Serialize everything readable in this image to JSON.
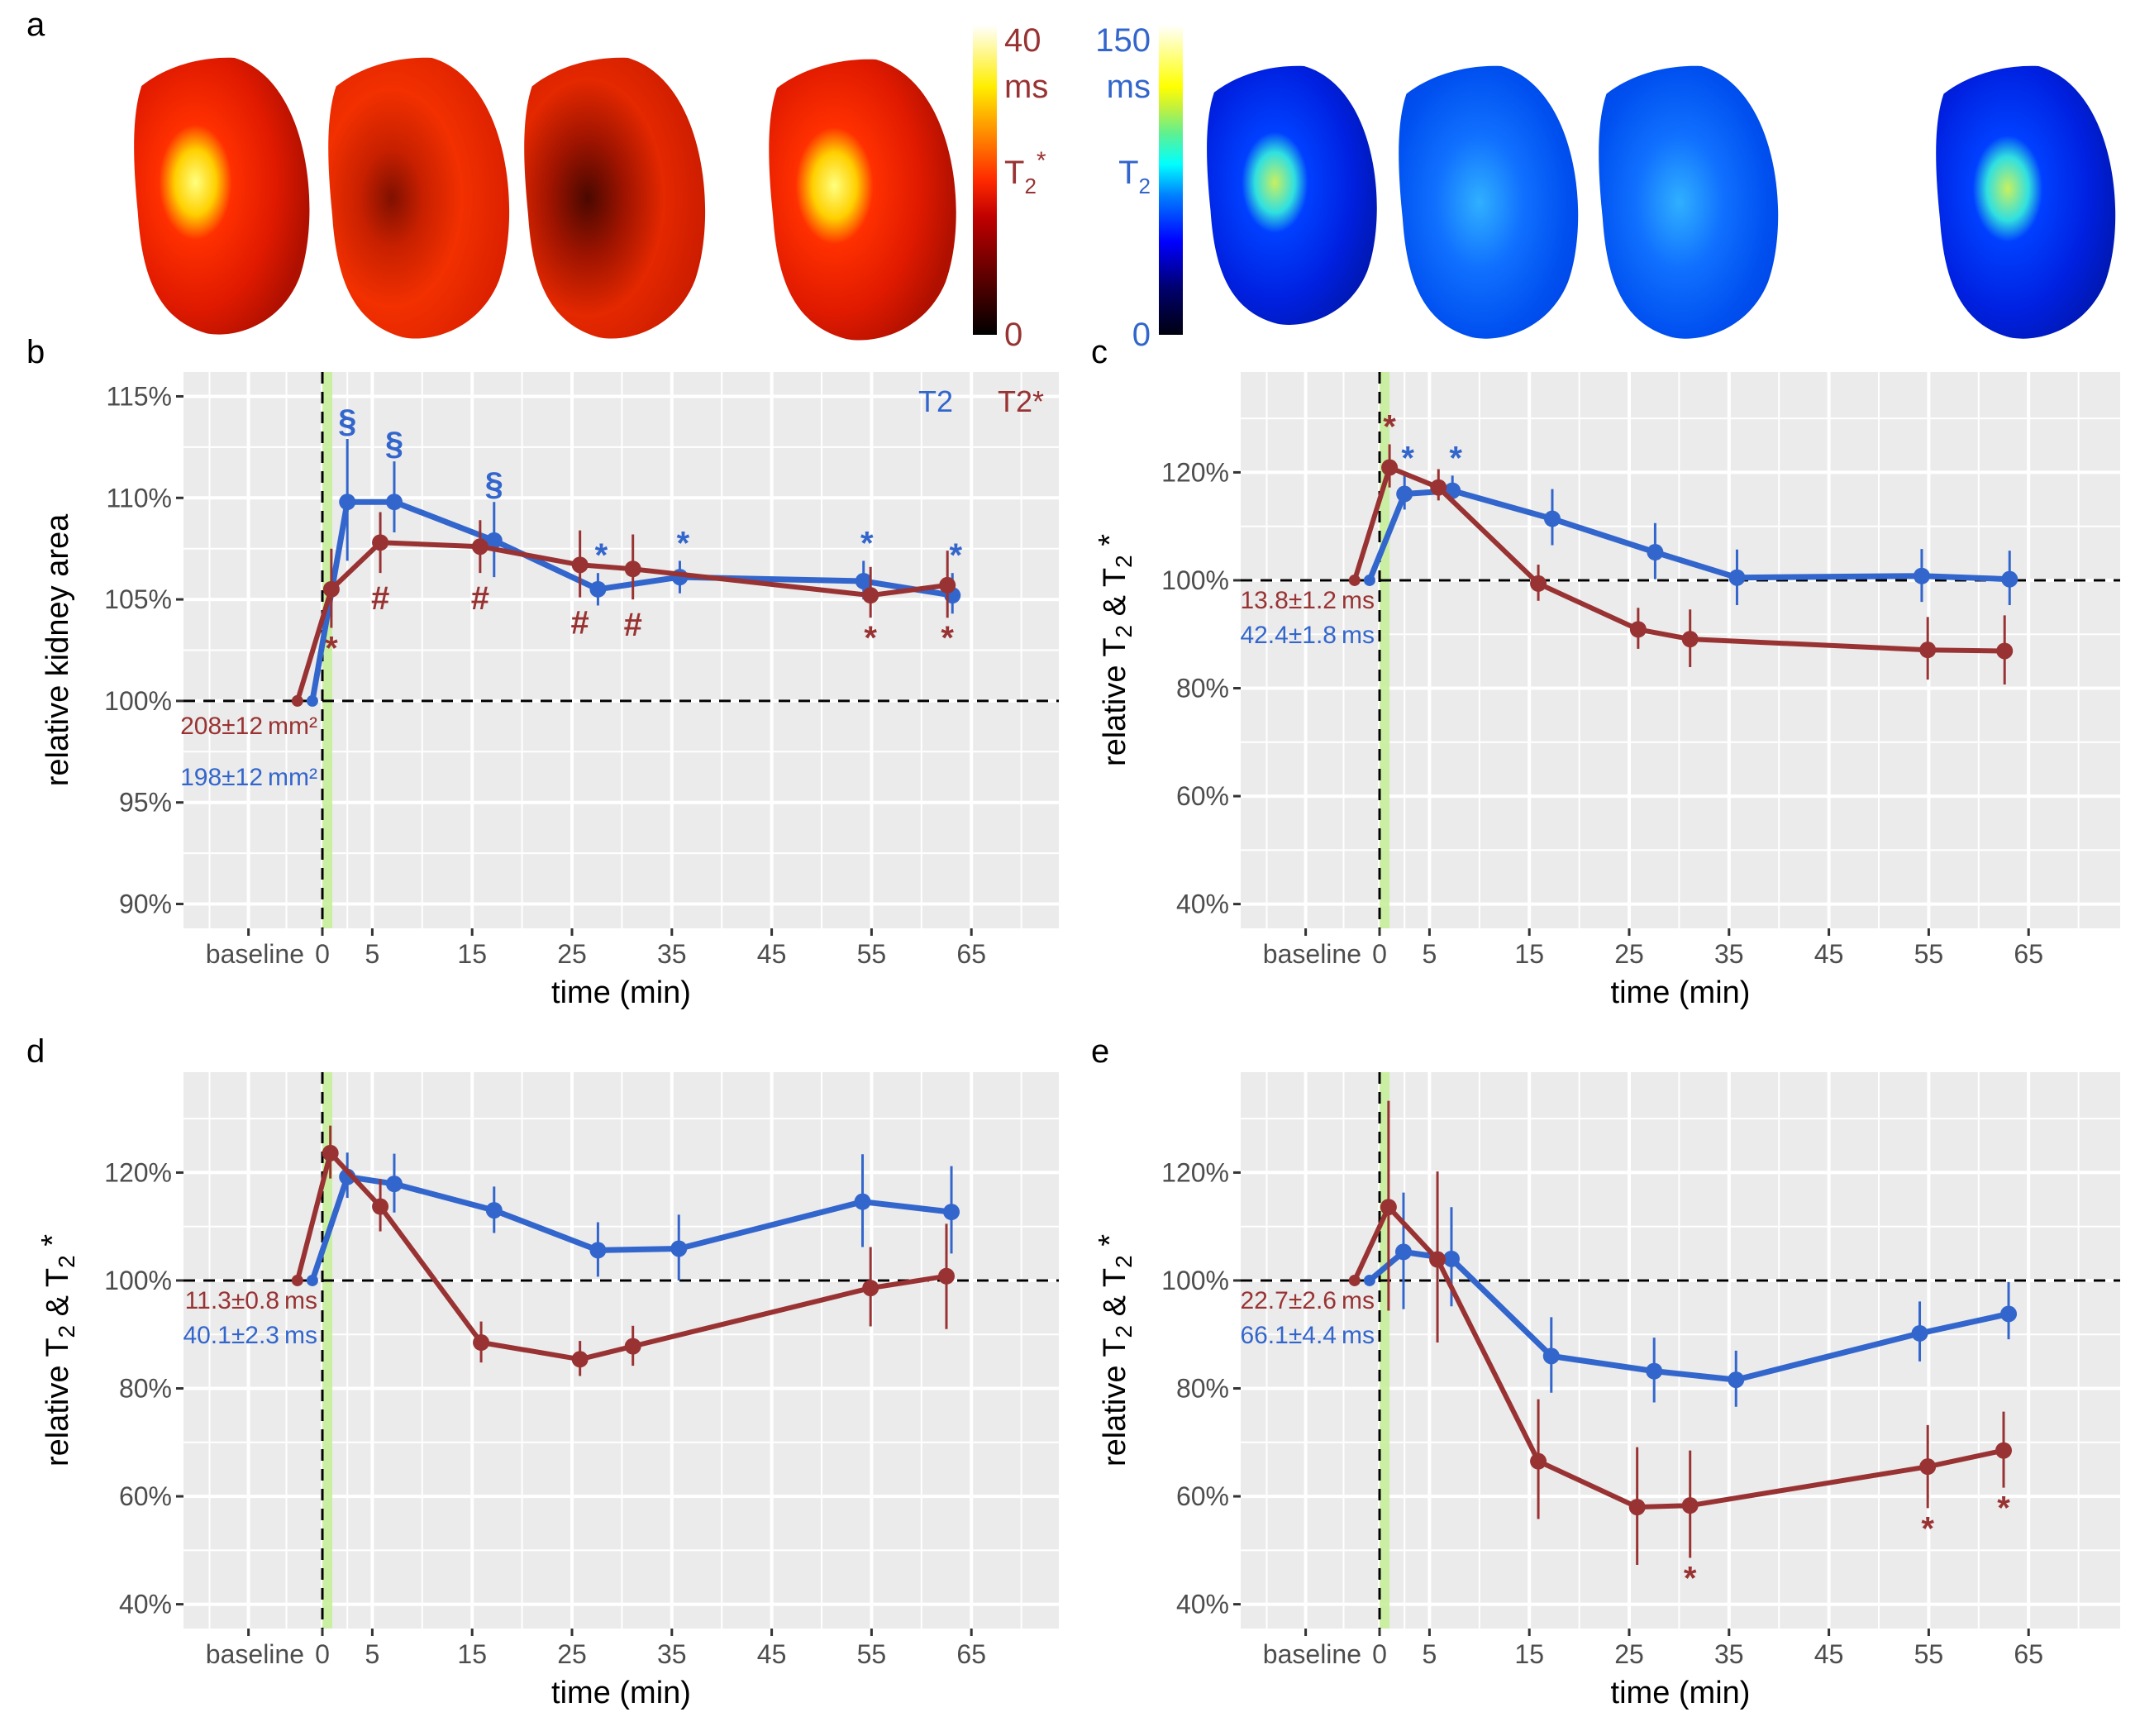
{
  "figure": {
    "panel_letters": [
      "a",
      "b",
      "c",
      "d",
      "e"
    ]
  },
  "colors": {
    "t2": "#3366CC",
    "t2star": "#993333",
    "panel_bg": "#EBEBEB",
    "grid": "#FFFFFF",
    "infusion_band": "#C8F09A",
    "tick_text": "#4D4D4D"
  },
  "panel_a": {
    "t2star_colorbar": {
      "max_label": "40",
      "unit_label": "ms",
      "name_main": "T",
      "name_sub": "2",
      "name_sup": "*",
      "min_label": "0",
      "colormap": "hot"
    },
    "t2_colorbar": {
      "max_label": "150",
      "unit_label": "ms",
      "name_main": "T",
      "name_sub": "2",
      "min_label": "0",
      "colormap": "jet"
    },
    "t2star_maps": [
      "baseline",
      "post-1",
      "post-2",
      "post-3"
    ],
    "t2_maps": [
      "baseline",
      "post-1",
      "post-2",
      "post-3"
    ]
  },
  "chart_data": [
    {
      "panel": "b",
      "type": "line",
      "xlabel": "time (min)",
      "ylabel": "relative kidney area",
      "x_tick_labels": [
        "baseline",
        "0",
        "5",
        "15",
        "25",
        "35",
        "45",
        "55",
        "65"
      ],
      "x_ticks": [
        -7.4,
        0,
        5,
        15,
        25,
        35,
        45,
        55,
        65
      ],
      "y_ticks": [
        90,
        95,
        100,
        105,
        110,
        115
      ],
      "y_tick_labels": [
        "90%",
        "95%",
        "100%",
        "105%",
        "110%",
        "115%"
      ],
      "y_minor": [
        92.5,
        97.5,
        102.5,
        107.5,
        112.5
      ],
      "ylim": [
        88.8,
        116.2
      ],
      "xlim": [
        -13.9,
        73.7
      ],
      "reference_line_y": 100,
      "infusion_band": [
        0,
        1
      ],
      "legend": [
        {
          "label": "T2",
          "series": "T2"
        },
        {
          "label": "T2*",
          "series": "T2*"
        }
      ],
      "legend_position": "top-right",
      "baseline_annotations": [
        {
          "series": "T2*",
          "text": "208±12 mm²"
        },
        {
          "series": "T2",
          "text": "198±12 mm²"
        }
      ],
      "series": [
        {
          "name": "T2",
          "x": [
            -1,
            2.5,
            7.2,
            17.2,
            27.6,
            35.8,
            54.2,
            63.1
          ],
          "y": [
            100,
            109.8,
            109.8,
            107.9,
            105.5,
            106.1,
            105.9,
            105.2
          ],
          "err_low": [
            100,
            106.9,
            108.3,
            106.1,
            104.7,
            105.3,
            105.0,
            104.3
          ],
          "err_high": [
            100,
            112.9,
            111.8,
            109.8,
            106.3,
            106.9,
            106.9,
            106.3
          ],
          "markers": [
            "",
            "§",
            "§",
            "§",
            "*",
            "*",
            "*",
            "*"
          ],
          "marker_pos": [
            "",
            "above",
            "above",
            "above",
            "above",
            "above",
            "above",
            "above"
          ]
        },
        {
          "name": "T2*",
          "x": [
            -2.5,
            0.9,
            5.8,
            15.8,
            25.8,
            31.1,
            54.9,
            62.6
          ],
          "y": [
            100,
            105.5,
            107.8,
            107.6,
            106.7,
            106.5,
            105.2,
            105.7
          ],
          "err_low": [
            100,
            103.6,
            106.3,
            106.3,
            105.1,
            105.0,
            104.1,
            104.1
          ],
          "err_high": [
            100,
            107.5,
            109.3,
            108.9,
            108.4,
            108.2,
            106.6,
            107.4
          ],
          "markers": [
            "",
            "*",
            "#",
            "#",
            "#",
            "#",
            "*",
            "*"
          ],
          "marker_pos": [
            "",
            "below",
            "below",
            "below",
            "below",
            "below",
            "below",
            "below"
          ]
        }
      ]
    },
    {
      "panel": "c",
      "type": "line",
      "xlabel": "time (min)",
      "ylabel_main": "relative T",
      "ylabel_parts": [
        "relative T",
        "2",
        " & T",
        "2",
        " *"
      ],
      "x_tick_labels": [
        "baseline",
        "0",
        "5",
        "15",
        "25",
        "35",
        "45",
        "55",
        "65"
      ],
      "x_ticks": [
        -7.4,
        0,
        5,
        15,
        25,
        35,
        45,
        55,
        65
      ],
      "y_ticks": [
        40,
        60,
        80,
        100,
        120
      ],
      "y_tick_labels": [
        "40%",
        "60%",
        "80%",
        "100%",
        "120%"
      ],
      "y_minor": [
        50,
        70,
        90,
        110,
        130
      ],
      "ylim": [
        35.5,
        138.6
      ],
      "xlim": [
        -13.9,
        73.7
      ],
      "reference_line_y": 100,
      "infusion_band": [
        0,
        1
      ],
      "baseline_annotations": [
        {
          "series": "T2*",
          "text": "13.8±1.2 ms"
        },
        {
          "series": "T2",
          "text": "42.4±1.8 ms"
        }
      ],
      "series": [
        {
          "name": "T2",
          "x": [
            -1,
            2.5,
            7.3,
            17.3,
            27.6,
            35.8,
            54.3,
            63.1
          ],
          "y": [
            100,
            116.0,
            116.6,
            111.4,
            105.2,
            100.5,
            100.8,
            100.2
          ],
          "err_low": [
            100,
            113.1,
            114.2,
            106.5,
            100.2,
            95.4,
            96.0,
            95.4
          ],
          "err_high": [
            100,
            119.4,
            119.4,
            116.9,
            110.6,
            105.7,
            105.8,
            105.5
          ],
          "markers": [
            "",
            "*",
            "*",
            "",
            "",
            "",
            "",
            ""
          ],
          "marker_pos": [
            "",
            "above",
            "above",
            "",
            "",
            "",
            "",
            ""
          ]
        },
        {
          "name": "T2*",
          "x": [
            -2.5,
            1.0,
            5.9,
            15.9,
            25.9,
            31.1,
            54.9,
            62.6
          ],
          "y": [
            100,
            120.9,
            117.2,
            99.4,
            90.9,
            89.1,
            87.1,
            86.9
          ],
          "err_low": [
            100,
            117.2,
            114.8,
            96.2,
            87.3,
            83.9,
            81.6,
            80.7
          ],
          "err_high": [
            100,
            125.2,
            120.6,
            102.9,
            94.9,
            94.6,
            93.2,
            93.5
          ],
          "markers": [
            "",
            "*",
            "",
            "",
            "",
            "",
            "",
            ""
          ],
          "marker_pos": [
            "",
            "above",
            "",
            "",
            "",
            "",
            "",
            ""
          ]
        }
      ]
    },
    {
      "panel": "d",
      "type": "line",
      "xlabel": "time (min)",
      "ylabel_parts": [
        "relative T",
        "2",
        " & T",
        "2",
        " *"
      ],
      "x_tick_labels": [
        "baseline",
        "0",
        "5",
        "15",
        "25",
        "35",
        "45",
        "55",
        "65"
      ],
      "x_ticks": [
        -7.4,
        0,
        5,
        15,
        25,
        35,
        45,
        55,
        65
      ],
      "y_ticks": [
        40,
        60,
        80,
        100,
        120
      ],
      "y_tick_labels": [
        "40%",
        "60%",
        "80%",
        "100%",
        "120%"
      ],
      "y_minor": [
        50,
        70,
        90,
        110,
        130
      ],
      "ylim": [
        35.5,
        138.6
      ],
      "xlim": [
        -13.9,
        73.7
      ],
      "reference_line_y": 100,
      "infusion_band": [
        0,
        1
      ],
      "baseline_annotations": [
        {
          "series": "T2*",
          "text": "11.3±0.8 ms"
        },
        {
          "series": "T2",
          "text": "40.1±2.3 ms"
        }
      ],
      "series": [
        {
          "name": "T2",
          "x": [
            -1,
            2.5,
            7.2,
            17.2,
            27.6,
            35.7,
            54.1,
            63.0
          ],
          "y": [
            100,
            119.2,
            117.9,
            113.0,
            105.6,
            105.9,
            114.6,
            112.7
          ],
          "err_low": [
            100,
            115.3,
            112.6,
            108.8,
            100.7,
            100.0,
            106.2,
            105.0
          ],
          "err_high": [
            100,
            123.7,
            123.5,
            117.4,
            110.8,
            112.2,
            123.4,
            121.2
          ],
          "markers": [
            "",
            "",
            "",
            "",
            "",
            "",
            "",
            ""
          ],
          "marker_pos": [
            "",
            "",
            "",
            "",
            "",
            "",
            "",
            ""
          ]
        },
        {
          "name": "T2*",
          "x": [
            -2.5,
            0.8,
            5.8,
            15.9,
            25.8,
            31.1,
            54.9,
            62.5
          ],
          "y": [
            100,
            123.6,
            113.7,
            88.5,
            85.4,
            87.8,
            98.6,
            100.8
          ],
          "err_low": [
            100,
            118.9,
            109.1,
            84.8,
            82.3,
            84.2,
            91.5,
            91.0
          ],
          "err_high": [
            100,
            128.7,
            118.8,
            92.4,
            88.8,
            91.6,
            106.2,
            110.5
          ],
          "markers": [
            "",
            "",
            "",
            "",
            "",
            "",
            "",
            ""
          ],
          "marker_pos": [
            "",
            "",
            "",
            "",
            "",
            "",
            "",
            ""
          ]
        }
      ]
    },
    {
      "panel": "e",
      "type": "line",
      "xlabel": "time (min)",
      "ylabel_parts": [
        "relative T",
        "2",
        " & T",
        "2",
        " *"
      ],
      "x_tick_labels": [
        "baseline",
        "0",
        "5",
        "15",
        "25",
        "35",
        "45",
        "55",
        "65"
      ],
      "x_ticks": [
        -7.4,
        0,
        5,
        15,
        25,
        35,
        45,
        55,
        65
      ],
      "y_ticks": [
        40,
        60,
        80,
        100,
        120
      ],
      "y_tick_labels": [
        "40%",
        "60%",
        "80%",
        "100%",
        "120%"
      ],
      "y_minor": [
        50,
        70,
        90,
        110,
        130
      ],
      "ylim": [
        35.5,
        138.6
      ],
      "xlim": [
        -13.9,
        73.7
      ],
      "reference_line_y": 100,
      "infusion_band": [
        0,
        1
      ],
      "baseline_annotations": [
        {
          "series": "T2*",
          "text": "22.7±2.6 ms"
        },
        {
          "series": "T2",
          "text": "66.1±4.4 ms"
        }
      ],
      "series": [
        {
          "name": "T2",
          "x": [
            -1,
            2.4,
            7.2,
            17.2,
            27.5,
            35.7,
            54.1,
            63.0
          ],
          "y": [
            100,
            105.3,
            104.0,
            86.0,
            83.2,
            81.6,
            90.2,
            93.8
          ],
          "err_low": [
            100,
            94.7,
            95.2,
            79.2,
            77.4,
            76.6,
            85.0,
            89.1
          ],
          "err_high": [
            100,
            116.3,
            113.6,
            93.2,
            89.4,
            87.0,
            96.1,
            99.7
          ],
          "markers": [
            "",
            "",
            "",
            "",
            "",
            "",
            "",
            ""
          ],
          "marker_pos": [
            "",
            "",
            "",
            "",
            "",
            "",
            "",
            ""
          ]
        },
        {
          "name": "T2*",
          "x": [
            -2.5,
            0.9,
            5.8,
            15.9,
            25.8,
            31.1,
            54.9,
            62.5
          ],
          "y": [
            100,
            113.6,
            103.9,
            66.5,
            58.0,
            58.3,
            65.5,
            68.5
          ],
          "err_low": [
            100,
            94.4,
            88.5,
            55.8,
            47.3,
            48.6,
            57.8,
            61.6
          ],
          "err_high": [
            100,
            133.3,
            120.2,
            78.0,
            69.1,
            68.5,
            73.2,
            75.7
          ],
          "markers": [
            "",
            "",
            "",
            "",
            "",
            "*",
            "*",
            "*"
          ],
          "marker_pos": [
            "",
            "",
            "",
            "",
            "",
            "below",
            "below",
            "below"
          ]
        }
      ]
    }
  ]
}
